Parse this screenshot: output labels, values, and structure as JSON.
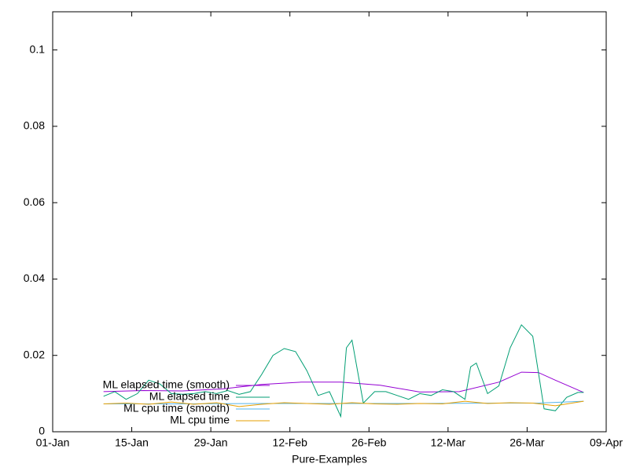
{
  "chart_data": {
    "type": "line",
    "x_label": "Pure-Examples",
    "xlim": [
      "01-Jan",
      "09-Apr"
    ],
    "xticks": [
      "01-Jan",
      "15-Jan",
      "29-Jan",
      "12-Feb",
      "26-Feb",
      "12-Mar",
      "26-Mar",
      "09-Apr"
    ],
    "ylim": [
      0,
      0.11
    ],
    "yticks": [
      0,
      0.02,
      0.04,
      0.06,
      0.08,
      0.1
    ],
    "grid": false,
    "legend": "bottom-left",
    "series": [
      {
        "name": "ML elapsed time (smooth)",
        "color": "#9400d3",
        "x": [
          "10-Jan",
          "17-Jan",
          "24-Jan",
          "31-Jan",
          "07-Feb",
          "14-Feb",
          "21-Feb",
          "28-Feb",
          "07-Mar",
          "14-Mar",
          "21-Mar",
          "25-Mar",
          "28-Mar",
          "31-Mar",
          "05-Apr"
        ],
        "values": [
          0.0105,
          0.0108,
          0.0107,
          0.0112,
          0.0124,
          0.013,
          0.013,
          0.0122,
          0.0104,
          0.0105,
          0.013,
          0.0156,
          0.0155,
          0.0135,
          0.0103
        ]
      },
      {
        "name": "ML elapsed time",
        "color": "#009e73",
        "x": [
          "10-Jan",
          "12-Jan",
          "14-Jan",
          "16-Jan",
          "18-Jan",
          "20-Jan",
          "22-Jan",
          "24-Jan",
          "26-Jan",
          "28-Jan",
          "30-Jan",
          "01-Feb",
          "03-Feb",
          "05-Feb",
          "07-Feb",
          "09-Feb",
          "11-Feb",
          "13-Feb",
          "15-Feb",
          "17-Feb",
          "19-Feb",
          "21-Feb",
          "22-Feb",
          "23-Feb",
          "25-Feb",
          "27-Feb",
          "01-Mar",
          "03-Mar",
          "05-Mar",
          "07-Mar",
          "09-Mar",
          "11-Mar",
          "13-Mar",
          "15-Mar",
          "16-Mar",
          "17-Mar",
          "19-Mar",
          "21-Mar",
          "23-Mar",
          "25-Mar",
          "27-Mar",
          "29-Mar",
          "31-Mar",
          "02-Apr",
          "04-Apr",
          "05-Apr"
        ],
        "values": [
          0.0093,
          0.0105,
          0.0085,
          0.01,
          0.0135,
          0.0125,
          0.01,
          0.0098,
          0.01,
          0.0105,
          0.01,
          0.0108,
          0.0098,
          0.0105,
          0.015,
          0.02,
          0.0218,
          0.021,
          0.016,
          0.0095,
          0.0105,
          0.004,
          0.022,
          0.024,
          0.0075,
          0.0105,
          0.0105,
          0.0095,
          0.0085,
          0.01,
          0.0095,
          0.011,
          0.0105,
          0.0085,
          0.017,
          0.018,
          0.01,
          0.012,
          0.022,
          0.028,
          0.025,
          0.006,
          0.0055,
          0.009,
          0.0103,
          0.0103
        ]
      },
      {
        "name": "ML cpu time (smooth)",
        "color": "#56b4e9",
        "x": [
          "10-Jan",
          "24-Jan",
          "07-Feb",
          "21-Feb",
          "07-Mar",
          "21-Mar",
          "28-Mar",
          "05-Apr"
        ],
        "values": [
          0.0073,
          0.0073,
          0.0074,
          0.0074,
          0.0074,
          0.0075,
          0.0075,
          0.008
        ]
      },
      {
        "name": "ML cpu time",
        "color": "#e69f00",
        "x": [
          "10-Jan",
          "14-Jan",
          "18-Jan",
          "22-Jan",
          "26-Jan",
          "30-Jan",
          "03-Feb",
          "07-Feb",
          "11-Feb",
          "15-Feb",
          "19-Feb",
          "23-Feb",
          "27-Feb",
          "03-Mar",
          "07-Mar",
          "11-Mar",
          "15-Mar",
          "19-Mar",
          "23-Mar",
          "27-Mar",
          "31-Mar",
          "05-Apr"
        ],
        "values": [
          0.0073,
          0.0075,
          0.0072,
          0.0078,
          0.0072,
          0.0076,
          0.0066,
          0.0072,
          0.0076,
          0.0074,
          0.0072,
          0.0076,
          0.0073,
          0.0072,
          0.0074,
          0.0073,
          0.008,
          0.0074,
          0.0076,
          0.0075,
          0.0068,
          0.008
        ]
      }
    ]
  }
}
